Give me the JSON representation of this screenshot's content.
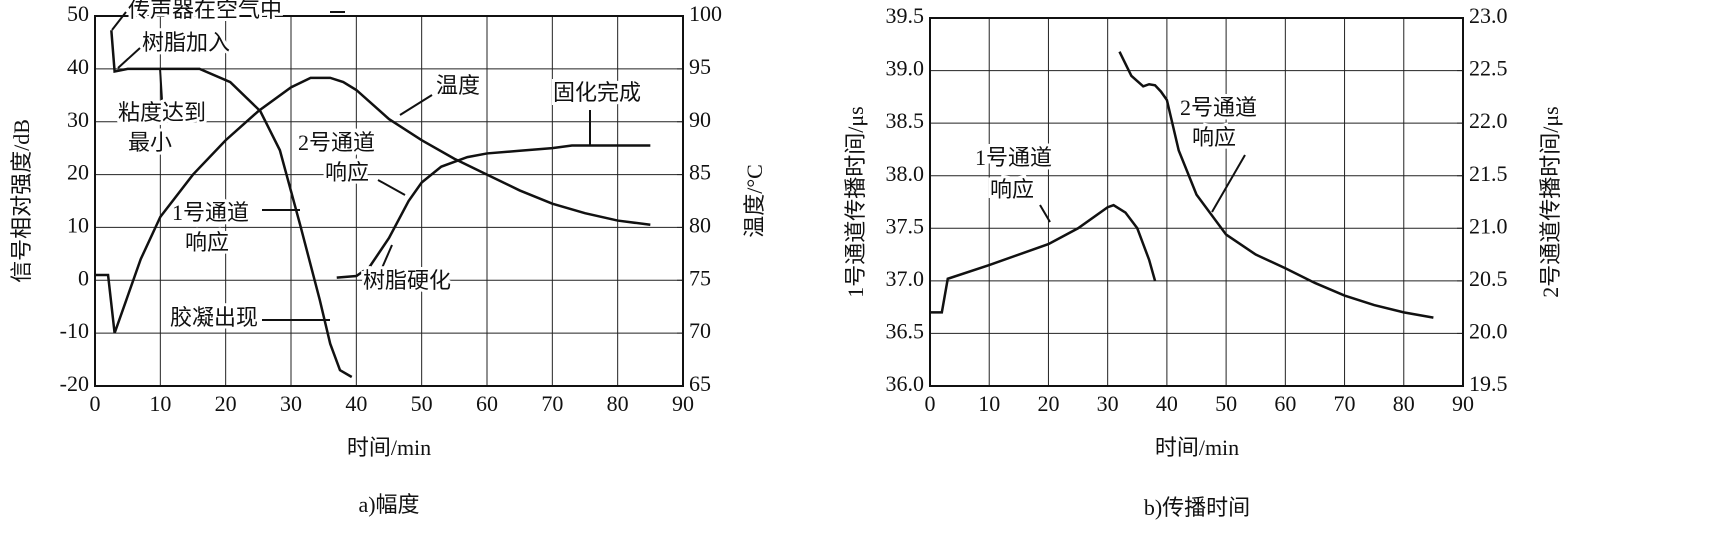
{
  "chart_data": [
    {
      "type": "line",
      "title": "a)幅度",
      "xlabel": "时间/min",
      "ylabel": "信号相对强度/dB",
      "y2label": "温度/°C",
      "xlim": [
        0,
        90
      ],
      "xticks": [
        0,
        10,
        20,
        30,
        40,
        50,
        60,
        70,
        80,
        90
      ],
      "ylim": [
        -20,
        50
      ],
      "yticks": [
        -20,
        -10,
        0,
        10,
        20,
        30,
        40,
        50
      ],
      "y2lim": [
        65,
        100
      ],
      "y2ticks": [
        65,
        70,
        75,
        80,
        85,
        90,
        95,
        100
      ],
      "grid": true,
      "series": [
        {
          "color": "#111111",
          "x": [
            2.5,
            3,
            5,
            8.5,
            16,
            20.7,
            25.3,
            28.3,
            31.4,
            34.4,
            36,
            37.5,
            39.3
          ],
          "values": [
            47.3,
            39.5,
            40,
            40,
            40,
            37.5,
            32,
            24.6,
            10.5,
            -3.7,
            -12,
            -17,
            -18.3
          ]
        },
        {
          "color": "#111111",
          "axis": "y2",
          "x": [
            0,
            2,
            3,
            5,
            7,
            10,
            15,
            20,
            25,
            30,
            33,
            36,
            38,
            40,
            45,
            50,
            55,
            60,
            65,
            70,
            75,
            80,
            85
          ],
          "values": [
            75.5,
            75.5,
            70,
            73.5,
            77,
            81,
            85,
            88.25,
            91,
            93.25,
            94.15,
            94.15,
            93.75,
            93,
            90.25,
            88.25,
            86.5,
            85,
            83.5,
            82.25,
            81.35,
            80.65,
            80.25
          ]
        },
        {
          "color": "#111111",
          "x": [
            37,
            40,
            42,
            45,
            48,
            50,
            53,
            57,
            60,
            65,
            70,
            73,
            85
          ],
          "values": [
            0.5,
            0.8,
            2.5,
            8,
            15,
            18.5,
            21.5,
            23.3,
            24,
            24.5,
            25,
            25.5,
            25.5
          ]
        }
      ],
      "annotations": [
        {
          "lines": [
            "传声器在空气中"
          ]
        },
        {
          "lines": [
            "树脂加入"
          ]
        },
        {
          "lines": [
            "粘度达到",
            "最小"
          ]
        },
        {
          "lines": [
            "1号通道",
            "响应"
          ]
        },
        {
          "lines": [
            "2号通道",
            "响应"
          ]
        },
        {
          "lines": [
            "温度"
          ]
        },
        {
          "lines": [
            "固化完成"
          ]
        },
        {
          "lines": [
            "树脂硬化"
          ]
        },
        {
          "lines": [
            "胶凝出现"
          ]
        }
      ]
    },
    {
      "type": "line",
      "title": "b)传播时间",
      "xlabel": "时间/min",
      "ylabel": "1号通道传播时间/μs",
      "y2label": "2号通道传播时间/μs",
      "xlim": [
        0,
        90
      ],
      "xticks": [
        0,
        10,
        20,
        30,
        40,
        50,
        60,
        70,
        80,
        90
      ],
      "ylim": [
        36,
        39.5
      ],
      "yticks": [
        {
          "value": 36,
          "label": "36.0"
        },
        36.5,
        {
          "value": 37,
          "label": "37.0"
        },
        37.5,
        {
          "value": 38,
          "label": "38.0"
        },
        38.5,
        {
          "value": 39,
          "label": "39.0"
        },
        39.5
      ],
      "y2lim": [
        19.5,
        23
      ],
      "y2ticks": [
        19.5,
        {
          "value": 20,
          "label": "20.0"
        },
        20.5,
        {
          "value": 21,
          "label": "21.0"
        },
        21.5,
        {
          "value": 22,
          "label": "22.0"
        },
        22.5,
        {
          "value": 23,
          "label": "23.0"
        }
      ],
      "grid": true,
      "series": [
        {
          "color": "#111111",
          "x": [
            0,
            2,
            3,
            10,
            20,
            25,
            30,
            31,
            33,
            35,
            37,
            38
          ],
          "values": [
            36.7,
            36.7,
            37.02,
            37.15,
            37.35,
            37.5,
            37.7,
            37.72,
            37.65,
            37.5,
            37.2,
            37.0
          ]
        },
        {
          "color": "#111111",
          "axis": "y2",
          "x": [
            32,
            34,
            36,
            37,
            38,
            39,
            40,
            42,
            45,
            50,
            55,
            60,
            65,
            70,
            75,
            80,
            85
          ],
          "values": [
            22.68,
            22.45,
            22.35,
            22.37,
            22.36,
            22.3,
            22.22,
            21.74,
            21.32,
            20.94,
            20.75,
            20.62,
            20.48,
            20.36,
            20.27,
            20.2,
            20.15
          ]
        }
      ],
      "annotations": [
        {
          "lines": [
            "1号通道",
            "响应"
          ]
        },
        {
          "lines": [
            "2号通道",
            "响应"
          ]
        }
      ]
    }
  ]
}
